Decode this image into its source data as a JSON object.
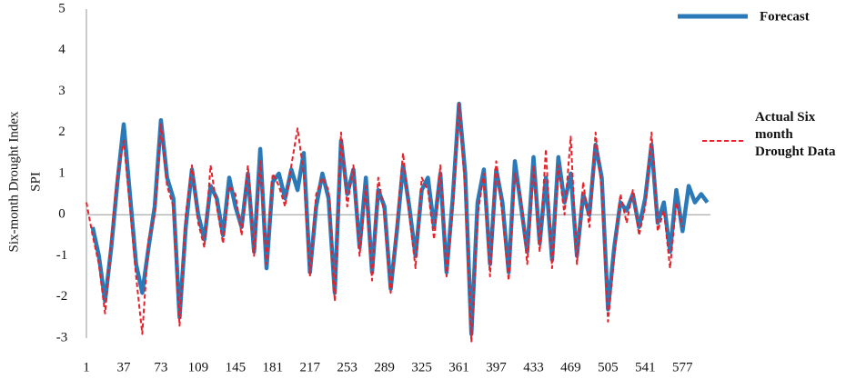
{
  "chart_data": {
    "type": "line",
    "y_label": [
      "Six-month Drought Index",
      "SPI"
    ],
    "x": [
      1,
      7,
      13,
      19,
      25,
      31,
      37,
      43,
      49,
      55,
      61,
      67,
      73,
      79,
      85,
      91,
      97,
      103,
      109,
      115,
      121,
      127,
      133,
      139,
      145,
      151,
      157,
      163,
      169,
      175,
      181,
      187,
      193,
      199,
      205,
      211,
      217,
      223,
      229,
      235,
      241,
      247,
      253,
      259,
      265,
      271,
      277,
      283,
      289,
      295,
      301,
      307,
      313,
      319,
      325,
      331,
      337,
      343,
      349,
      355,
      361,
      367,
      373,
      379,
      385,
      391,
      397,
      403,
      409,
      415,
      421,
      427,
      433,
      439,
      445,
      451,
      457,
      463,
      469,
      475,
      481,
      487,
      493,
      499,
      505,
      511,
      517,
      523,
      529,
      535,
      541,
      547,
      553,
      559,
      565,
      571,
      577,
      583,
      589,
      595,
      601
    ],
    "series": [
      {
        "name": "Forecast",
        "color": "#2a7ab9",
        "values": [
          null,
          -0.3,
          -1.0,
          -2.1,
          -0.8,
          0.8,
          2.2,
          0.5,
          -1.2,
          -1.9,
          -0.8,
          0.2,
          2.3,
          0.9,
          0.4,
          -2.5,
          -0.3,
          1.1,
          0.0,
          -0.6,
          0.7,
          0.4,
          -0.5,
          0.9,
          0.2,
          -0.3,
          1.0,
          -0.9,
          1.6,
          -1.3,
          0.8,
          1.0,
          0.4,
          1.1,
          0.6,
          1.5,
          -1.4,
          0.2,
          1.0,
          0.4,
          -1.9,
          1.8,
          0.5,
          1.1,
          -0.8,
          0.9,
          -1.4,
          0.6,
          0.2,
          -1.8,
          -0.4,
          1.2,
          0.2,
          -1.0,
          0.6,
          0.9,
          -0.3,
          1.0,
          -1.4,
          0.4,
          2.7,
          1.0,
          -2.9,
          0.3,
          1.1,
          -1.2,
          1.1,
          0.3,
          -1.4,
          1.3,
          0.2,
          -0.9,
          1.4,
          -0.7,
          0.9,
          -1.1,
          1.4,
          0.3,
          1.0,
          -1.0,
          0.5,
          0.0,
          1.7,
          0.9,
          -2.3,
          -0.8,
          0.3,
          0.1,
          0.5,
          -0.3,
          0.4,
          1.7,
          -0.2,
          0.3,
          -0.9,
          0.6,
          -0.4,
          0.7,
          0.3,
          0.5,
          0.3
        ]
      },
      {
        "name": "Actual Six month Drought Data",
        "color": "#e8202a",
        "values": [
          0.3,
          -0.5,
          -1.2,
          -2.4,
          -0.6,
          1.0,
          1.8,
          0.2,
          -1.5,
          -2.9,
          -0.6,
          0.0,
          2.2,
          0.7,
          0.2,
          -2.7,
          0.0,
          1.2,
          -0.2,
          -0.8,
          1.2,
          0.2,
          -0.7,
          0.7,
          0.5,
          -0.5,
          1.2,
          -1.0,
          1.3,
          -1.2,
          1.0,
          0.7,
          0.2,
          1.2,
          2.1,
          1.0,
          -1.5,
          0.5,
          0.9,
          0.6,
          -2.1,
          2.0,
          0.2,
          1.2,
          -1.0,
          0.7,
          -1.6,
          0.9,
          0.0,
          -1.9,
          -0.2,
          1.5,
          0.0,
          -1.3,
          0.9,
          0.6,
          -0.6,
          1.2,
          -1.5,
          0.2,
          2.7,
          0.6,
          -3.1,
          0.0,
          1.0,
          -1.5,
          1.3,
          0.0,
          -1.6,
          1.0,
          0.4,
          -1.2,
          1.2,
          -0.9,
          1.6,
          -1.3,
          1.2,
          0.0,
          1.9,
          -1.2,
          0.8,
          -0.3,
          2.0,
          0.6,
          -2.6,
          -1.0,
          0.5,
          -0.2,
          0.6,
          -0.5,
          0.2,
          2.0,
          -0.4,
          0.1,
          -1.3,
          0.3,
          -0.3,
          null,
          null,
          null,
          null
        ]
      }
    ],
    "xlim": [
      1,
      604
    ],
    "xticks": [
      1,
      37,
      73,
      109,
      145,
      181,
      217,
      253,
      289,
      325,
      361,
      397,
      433,
      469,
      505,
      541,
      577
    ],
    "ylim": [
      -3,
      5
    ],
    "yticks": [
      -3,
      -2,
      -1,
      0,
      1,
      2,
      3,
      4,
      5
    ],
    "legend": "right"
  }
}
